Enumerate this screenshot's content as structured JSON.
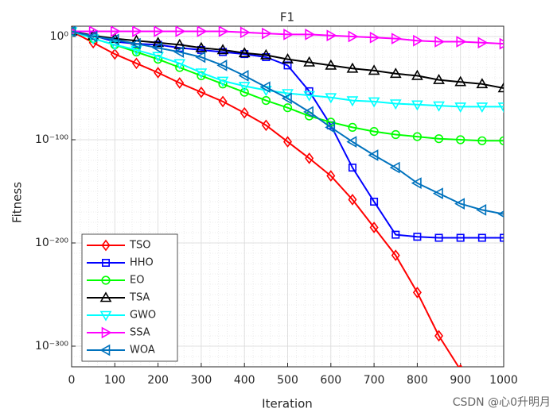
{
  "chart_data": {
    "type": "line",
    "title": "F1",
    "x_label": "Iteration",
    "y_label": "Fitness",
    "y_scale": "log",
    "grid": true,
    "legend_position": "lower-left",
    "x": [
      0,
      50,
      100,
      150,
      200,
      250,
      300,
      350,
      400,
      450,
      500,
      550,
      600,
      650,
      700,
      750,
      800,
      850,
      900,
      950,
      1000
    ],
    "xlim": [
      0,
      1000
    ],
    "xticks": [
      0,
      100,
      200,
      300,
      400,
      500,
      600,
      700,
      800,
      900,
      1000
    ],
    "ylim": [
      1e-320,
      10000000000.0
    ],
    "yticks": [
      {
        "value": 1,
        "label": "10⁰"
      },
      {
        "value": 1e-100,
        "label": "10⁻¹⁰⁰"
      },
      {
        "value": 1e-200,
        "label": "10⁻²⁰⁰"
      },
      {
        "value": 1e-300,
        "label": "10⁻³⁰⁰"
      }
    ],
    "series": [
      {
        "name": "TSO",
        "color": "#ff0000",
        "marker": "diamond",
        "values": [
          100000.0,
          1e-06,
          1e-17,
          1e-26,
          1e-35,
          1e-45,
          1e-54,
          1e-63,
          1e-74,
          1e-86,
          1e-102,
          1e-118,
          1e-135,
          1e-158,
          1e-185,
          1e-212,
          1e-248,
          1e-290,
          1e-323,
          null,
          null
        ]
      },
      {
        "name": "HHO",
        "color": "#0000ff",
        "marker": "square",
        "values": [
          100000.0,
          10.0,
          1e-05,
          1e-07,
          1e-08,
          1e-11,
          1e-13,
          1e-15,
          1e-17,
          1e-20,
          1e-28,
          1e-53,
          1e-86,
          1e-127,
          1e-160,
          1e-192,
          1e-194,
          1e-195,
          1e-195,
          1e-195,
          1e-195
        ]
      },
      {
        "name": "EO",
        "color": "#00ff00",
        "marker": "circle",
        "values": [
          100000.0,
          0.01,
          1e-08,
          1e-15,
          1e-22,
          1e-30,
          1e-38,
          1e-46,
          1e-54,
          1e-62,
          1e-69,
          1e-77,
          1e-83,
          1e-88,
          1e-92,
          1e-95,
          1e-97,
          1e-99,
          1e-100,
          1e-101,
          1e-101
        ]
      },
      {
        "name": "TSA",
        "color": "#000000",
        "marker": "triangle-up",
        "values": [
          100000.0,
          10.0,
          0.01,
          0.0001,
          1e-06,
          1e-08,
          1e-11,
          1e-13,
          1e-16,
          1e-18,
          1e-22,
          1e-25,
          1e-28,
          1e-31,
          1e-33,
          1e-36,
          1e-38,
          1e-42,
          1e-44,
          1e-46,
          1e-50
        ]
      },
      {
        "name": "GWO",
        "color": "#00ffff",
        "marker": "triangle-down",
        "values": [
          100000.0,
          0.01,
          1e-08,
          1e-13,
          1e-19,
          1e-26,
          1e-35,
          1e-43,
          1e-48,
          1e-52,
          1e-55,
          1e-57,
          1e-59,
          1e-62,
          1e-63,
          1e-65,
          1e-66,
          1e-67,
          1e-68,
          1e-68,
          1e-68
        ]
      },
      {
        "name": "SSA",
        "color": "#ff00ff",
        "marker": "triangle-right",
        "values": [
          100000.0,
          100000.0,
          100000.0,
          100000.0,
          100000.0,
          100000.0,
          100000.0,
          100000.0,
          10000.0,
          1000.0,
          100.0,
          100.0,
          10.0,
          1,
          0.1,
          0.01,
          0.0001,
          1e-05,
          1e-05,
          1e-06,
          1e-07
        ]
      },
      {
        "name": "WOA",
        "color": "#0072bd",
        "marker": "triangle-left",
        "values": [
          100000.0,
          1,
          0.001,
          1e-07,
          1e-11,
          1e-15,
          1e-20,
          1e-28,
          1e-38,
          1e-49,
          1e-60,
          1e-73,
          1e-88,
          1e-102,
          1e-115,
          1e-127,
          1e-142,
          1e-152,
          1e-162,
          1e-168,
          1e-172
        ]
      }
    ]
  },
  "watermark": "CSDN @心0升明月"
}
